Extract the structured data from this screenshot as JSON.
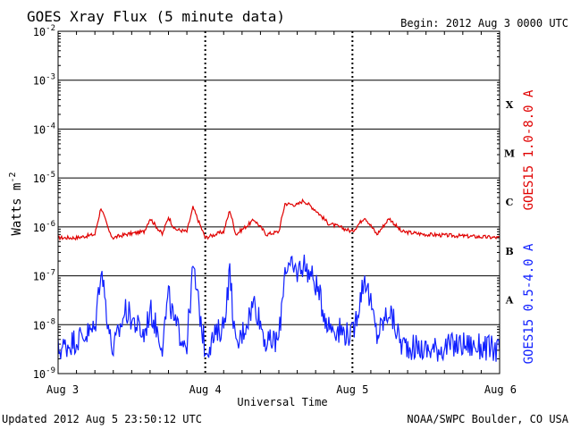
{
  "header": {
    "title": "GOES Xray Flux (5 minute data)",
    "begin": "Begin:  2012 Aug 3 0000 UTC"
  },
  "footer": {
    "updated": "Updated 2012 Aug  5 23:50:12 UTC",
    "credit": "NOAA/SWPC Boulder, CO USA"
  },
  "colors": {
    "long_channel": "#e00000",
    "short_channel": "#1020ff",
    "axes": "#000000",
    "background": "#ffffff"
  },
  "chart_data": {
    "type": "line",
    "title": "GOES Xray Flux (5 minute data)",
    "xlabel": "Universal Time",
    "ylabel_base": "Watts m",
    "ylabel_exp": "-2",
    "y_scale": "log",
    "ylim": [
      1e-09,
      0.01
    ],
    "xlim": [
      "2012-08-03",
      "2012-08-06"
    ],
    "x_ticks": [
      "Aug 3",
      "Aug 4",
      "Aug 5",
      "Aug 6"
    ],
    "y_ticks": [
      {
        "base": "10",
        "exp": "-2",
        "value": 0.01
      },
      {
        "base": "10",
        "exp": "-3",
        "value": 0.001
      },
      {
        "base": "10",
        "exp": "-4",
        "value": 0.0001
      },
      {
        "base": "10",
        "exp": "-5",
        "value": 1e-05
      },
      {
        "base": "10",
        "exp": "-6",
        "value": 1e-06
      },
      {
        "base": "10",
        "exp": "-7",
        "value": 1e-07
      },
      {
        "base": "10",
        "exp": "-8",
        "value": 1e-08
      },
      {
        "base": "10",
        "exp": "-9",
        "value": 1e-09
      }
    ],
    "flare_classes": [
      {
        "label": "X",
        "value": 0.00032
      },
      {
        "label": "M",
        "value": 3.2e-05
      },
      {
        "label": "C",
        "value": 3.2e-06
      },
      {
        "label": "B",
        "value": 3.2e-07
      },
      {
        "label": "A",
        "value": 3.2e-08
      }
    ],
    "grid": "horizontal lines at each decade; dotted vertical lines at each day boundary",
    "series": [
      {
        "name": "GOES15 1.0-8.0 A",
        "color": "#e00000",
        "x": [
          "2012-08-03 00:00",
          "2012-08-03 03:00",
          "2012-08-03 06:00",
          "2012-08-03 07:00",
          "2012-08-03 08:30",
          "2012-08-03 09:00",
          "2012-08-03 11:00",
          "2012-08-03 14:00",
          "2012-08-03 15:00",
          "2012-08-03 17:00",
          "2012-08-03 18:00",
          "2012-08-03 19:00",
          "2012-08-03 21:00",
          "2012-08-03 22:00",
          "2012-08-04 00:00",
          "2012-08-04 03:00",
          "2012-08-04 04:00",
          "2012-08-04 05:00",
          "2012-08-04 08:00",
          "2012-08-04 10:00",
          "2012-08-04 12:00",
          "2012-08-04 13:00",
          "2012-08-04 15:00",
          "2012-08-04 16:00",
          "2012-08-04 18:00",
          "2012-08-04 20:00",
          "2012-08-05 00:00",
          "2012-08-05 02:00",
          "2012-08-05 04:00",
          "2012-08-05 06:00",
          "2012-08-05 08:00",
          "2012-08-05 12:00",
          "2012-08-05 18:00",
          "2012-08-06 00:00"
        ],
        "values": [
          6e-07,
          6e-07,
          7e-07,
          2.5e-06,
          7e-07,
          6e-07,
          7e-07,
          8e-07,
          1.5e-06,
          7e-07,
          1.6e-06,
          9e-07,
          8e-07,
          2.5e-06,
          6e-07,
          8e-07,
          2.2e-06,
          7e-07,
          1.4e-06,
          7e-07,
          8e-07,
          3e-06,
          2.8e-06,
          3.5e-06,
          2.2e-06,
          1.2e-06,
          8e-07,
          1.6e-06,
          7e-07,
          1.5e-06,
          8e-07,
          7e-07,
          6.5e-07,
          6e-07
        ]
      },
      {
        "name": "GOES15 0.5-4.0 A",
        "color": "#1020ff",
        "x": [
          "2012-08-03 00:00",
          "2012-08-03 03:00",
          "2012-08-03 06:00",
          "2012-08-03 07:00",
          "2012-08-03 08:30",
          "2012-08-03 09:00",
          "2012-08-03 11:00",
          "2012-08-03 14:00",
          "2012-08-03 15:00",
          "2012-08-03 17:00",
          "2012-08-03 18:00",
          "2012-08-03 19:00",
          "2012-08-03 21:00",
          "2012-08-03 22:00",
          "2012-08-04 00:00",
          "2012-08-04 03:00",
          "2012-08-04 04:00",
          "2012-08-04 05:00",
          "2012-08-04 08:00",
          "2012-08-04 10:00",
          "2012-08-04 12:00",
          "2012-08-04 13:00",
          "2012-08-04 15:00",
          "2012-08-04 16:00",
          "2012-08-04 18:00",
          "2012-08-04 20:00",
          "2012-08-05 00:00",
          "2012-08-05 02:00",
          "2012-08-05 04:00",
          "2012-08-05 06:00",
          "2012-08-05 08:00",
          "2012-08-05 12:00",
          "2012-08-05 18:00",
          "2012-08-06 00:00"
        ],
        "values": [
          3e-09,
          5e-09,
          8e-09,
          1.6e-07,
          5e-09,
          3e-09,
          2e-08,
          6e-09,
          2e-08,
          4e-09,
          4e-08,
          1e-08,
          4e-09,
          1.5e-07,
          3e-09,
          1e-08,
          1.2e-07,
          3e-09,
          3e-08,
          4e-09,
          5e-09,
          1.6e-07,
          1.2e-07,
          1.8e-07,
          7e-08,
          1e-08,
          6e-09,
          1e-07,
          6e-09,
          2e-08,
          4e-09,
          3e-09,
          4e-09,
          3e-09
        ]
      }
    ]
  }
}
